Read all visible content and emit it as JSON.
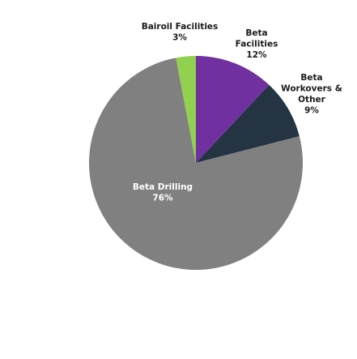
{
  "chart_data": {
    "type": "pie",
    "title": "",
    "slices": [
      {
        "label": [
          "Beta",
          "Facilities"
        ],
        "value": 12,
        "value_label": "12%",
        "color": "#7030a0",
        "label_style": "outside"
      },
      {
        "label": [
          "Beta",
          "Workovers &",
          "Other"
        ],
        "value": 9,
        "value_label": "9%",
        "color": "#243443",
        "label_style": "outside"
      },
      {
        "label": [
          "Beta Drilling"
        ],
        "value": 76,
        "value_label": "76%",
        "color": "#808080",
        "label_style": "inside"
      },
      {
        "label": [
          "Bairoil Facilities"
        ],
        "value": 3,
        "value_label": "3%",
        "color": "#92d050",
        "label_style": "outside"
      }
    ],
    "start_angle_deg": 0,
    "direction": "clockwise",
    "legend": "none"
  }
}
